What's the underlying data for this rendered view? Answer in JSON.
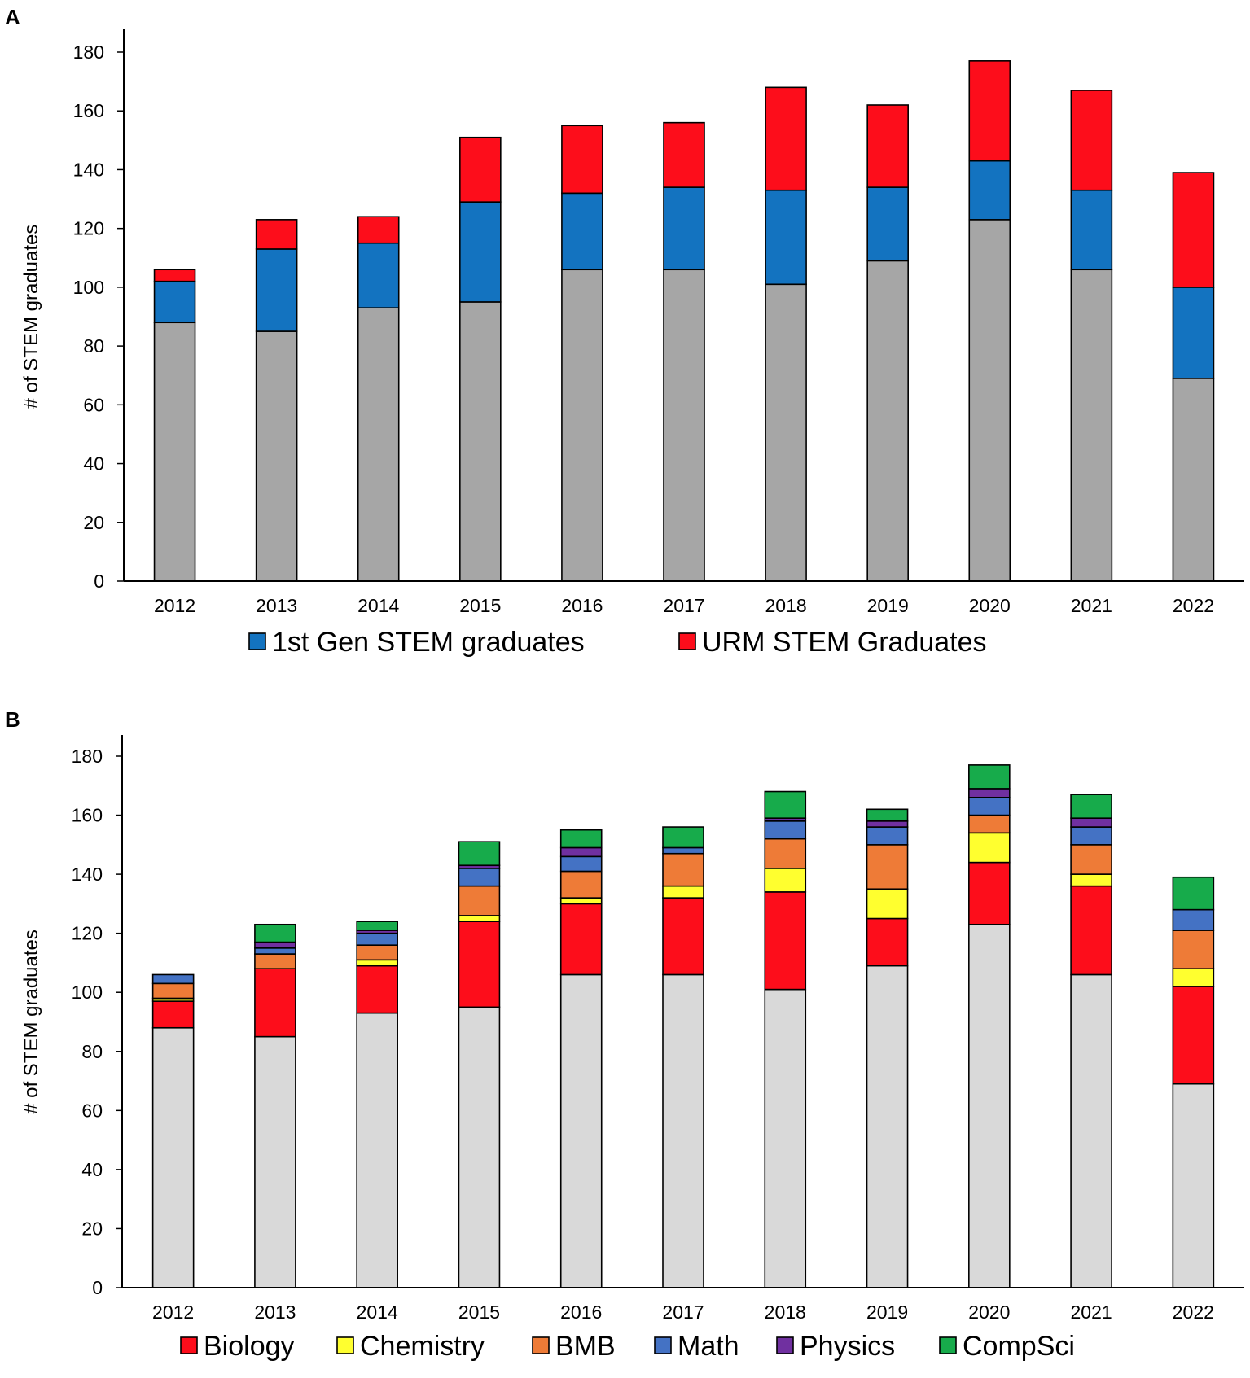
{
  "chart_data": [
    {
      "panel": "A",
      "type": "bar",
      "stacked": true,
      "ylabel": "# of STEM graduates",
      "xlabel": "",
      "ylim": [
        0,
        180
      ],
      "yticks": [
        0,
        20,
        40,
        60,
        80,
        100,
        120,
        140,
        160,
        180
      ],
      "categories": [
        "2012",
        "2013",
        "2014",
        "2015",
        "2016",
        "2017",
        "2018",
        "2019",
        "2020",
        "2021",
        "2022"
      ],
      "series": [
        {
          "name": "",
          "color": "#a6a6a6",
          "values": [
            88,
            85,
            93,
            95,
            106,
            106,
            101,
            109,
            123,
            106,
            69
          ]
        },
        {
          "name": "1st Gen STEM graduates",
          "color": "#1373c0",
          "values": [
            14,
            28,
            22,
            34,
            26,
            28,
            32,
            25,
            20,
            27,
            31
          ]
        },
        {
          "name": "URM STEM Graduates",
          "color": "#fd0d1b",
          "values": [
            4,
            10,
            9,
            22,
            23,
            22,
            35,
            28,
            34,
            34,
            39
          ]
        }
      ],
      "legend": [
        "1st Gen STEM graduates",
        "URM STEM Graduates"
      ]
    },
    {
      "panel": "B",
      "type": "bar",
      "stacked": true,
      "ylabel": "# of STEM graduates",
      "xlabel": "",
      "ylim": [
        0,
        180
      ],
      "yticks": [
        0,
        20,
        40,
        60,
        80,
        100,
        120,
        140,
        160,
        180
      ],
      "categories": [
        "2012",
        "2013",
        "2014",
        "2015",
        "2016",
        "2017",
        "2018",
        "2019",
        "2020",
        "2021",
        "2022"
      ],
      "series": [
        {
          "name": "",
          "color": "#d9d9d9",
          "values": [
            88,
            85,
            93,
            95,
            106,
            106,
            101,
            109,
            123,
            106,
            69
          ]
        },
        {
          "name": "Biology",
          "color": "#fd0d1b",
          "values": [
            9,
            23,
            16,
            29,
            24,
            26,
            33,
            16,
            21,
            30,
            33
          ]
        },
        {
          "name": "Chemistry",
          "color": "#ffff2f",
          "values": [
            1,
            0,
            2,
            2,
            2,
            4,
            8,
            10,
            10,
            4,
            6
          ]
        },
        {
          "name": "BMB",
          "color": "#ee7b37",
          "values": [
            5,
            5,
            5,
            10,
            9,
            11,
            10,
            15,
            6,
            10,
            13
          ]
        },
        {
          "name": "Math",
          "color": "#4472c4",
          "values": [
            3,
            2,
            4,
            6,
            5,
            2,
            6,
            6,
            6,
            6,
            7
          ]
        },
        {
          "name": "Physics",
          "color": "#7030a0",
          "values": [
            0,
            2,
            1,
            1,
            3,
            0,
            1,
            2,
            3,
            3,
            0
          ]
        },
        {
          "name": "CompSci",
          "color": "#17ab4b",
          "values": [
            0,
            6,
            3,
            8,
            6,
            7,
            9,
            4,
            8,
            8,
            11
          ]
        }
      ],
      "legend": [
        "Biology",
        "Chemistry",
        "BMB",
        "Math",
        "Physics",
        "CompSci"
      ]
    }
  ]
}
